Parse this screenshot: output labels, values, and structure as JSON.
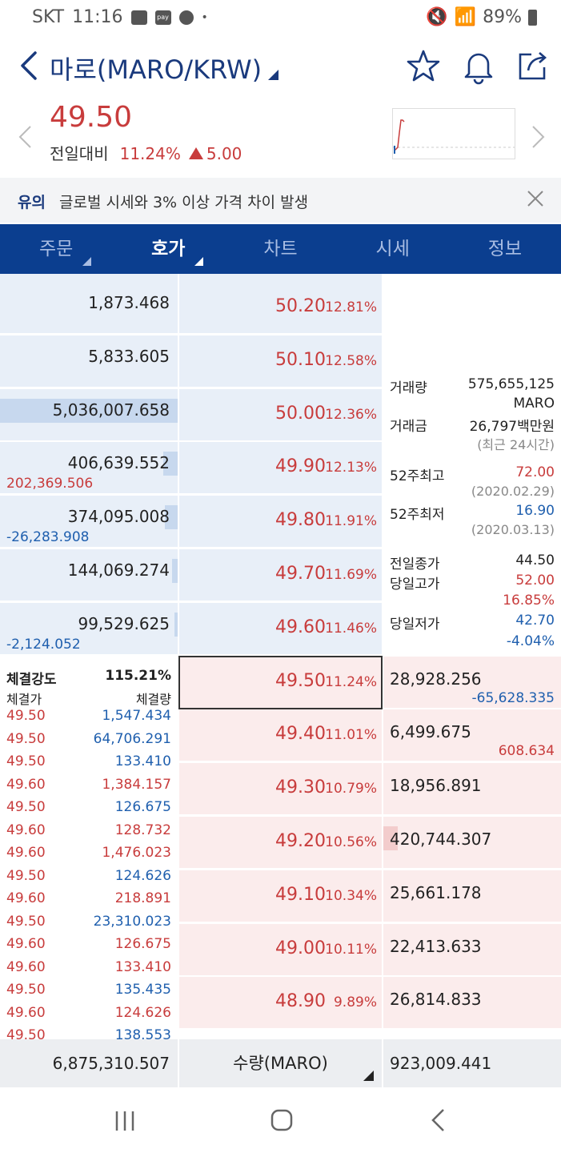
{
  "status": {
    "carrier": "SKT",
    "time": "11:16",
    "battery": "89%",
    "pay_label": "pay"
  },
  "header": {
    "title": "마로(MARO/KRW)"
  },
  "price": {
    "current": "49.50",
    "compare_label": "전일대비",
    "rate": "11.24%",
    "change": "5.00"
  },
  "notice": {
    "tag": "유의",
    "message": "글로벌 시세와 3% 이상 가격 차이 발생"
  },
  "tabs": [
    {
      "label": "주문",
      "caret": true,
      "active": false
    },
    {
      "label": "호가",
      "caret": true,
      "active": true
    },
    {
      "label": "차트",
      "caret": false,
      "active": false
    },
    {
      "label": "시세",
      "caret": false,
      "active": false
    },
    {
      "label": "정보",
      "caret": false,
      "active": false
    }
  ],
  "asks": [
    {
      "qty": "1,873.468",
      "price": "50.20",
      "pct": "12.81%",
      "delta": "",
      "delta_color": "",
      "bar": 0
    },
    {
      "qty": "5,833.605",
      "price": "50.10",
      "pct": "12.58%",
      "delta": "",
      "delta_color": "",
      "bar": 0
    },
    {
      "qty": "5,036,007.658",
      "price": "50.00",
      "pct": "12.36%",
      "delta": "",
      "delta_color": "",
      "bar": 1.0
    },
    {
      "qty": "406,639.552",
      "price": "49.90",
      "pct": "12.13%",
      "delta": "202,369.506",
      "delta_color": "#c83c3c",
      "bar": 0.08
    },
    {
      "qty": "374,095.008",
      "price": "49.80",
      "pct": "11.91%",
      "delta": "-26,283.908",
      "delta_color": "#1f5fae",
      "bar": 0.07
    },
    {
      "qty": "144,069.274",
      "price": "49.70",
      "pct": "11.69%",
      "delta": "",
      "delta_color": "",
      "bar": 0.03
    },
    {
      "qty": "99,529.625",
      "price": "49.60",
      "pct": "11.46%",
      "delta": "-2,124.052",
      "delta_color": "#1f5fae",
      "bar": 0.02
    }
  ],
  "bids": [
    {
      "price": "49.50",
      "pct": "11.24%",
      "qty": "28,928.256",
      "delta": "-65,628.335",
      "delta_color": "#1f5fae",
      "bar": 0
    },
    {
      "price": "49.40",
      "pct": "11.01%",
      "qty": "6,499.675",
      "delta": "608.634",
      "delta_color": "#c83c3c",
      "bar": 0
    },
    {
      "price": "49.30",
      "pct": "10.79%",
      "qty": "18,956.891",
      "delta": "",
      "delta_color": "",
      "bar": 0
    },
    {
      "price": "49.20",
      "pct": "10.56%",
      "qty": "420,744.307",
      "delta": "",
      "delta_color": "",
      "bar": 0.08
    },
    {
      "price": "49.10",
      "pct": "10.34%",
      "qty": "25,661.178",
      "delta": "",
      "delta_color": "",
      "bar": 0
    },
    {
      "price": "49.00",
      "pct": "10.11%",
      "qty": "22,413.633",
      "delta": "",
      "delta_color": "",
      "bar": 0
    },
    {
      "price": "48.90",
      "pct": "9.89%",
      "qty": "26,814.833",
      "delta": "",
      "delta_color": "",
      "bar": 0
    }
  ],
  "info": {
    "volume_label": "거래량",
    "volume": "575,655,125",
    "volume_unit": "MARO",
    "amount_label": "거래금",
    "amount": "26,797백만원",
    "period": "(최근 24시간)",
    "high52_label": "52주최고",
    "high52": "72.00",
    "high52_date": "(2020.02.29)",
    "low52_label": "52주최저",
    "low52": "16.90",
    "low52_date": "(2020.03.13)",
    "prev_close_label": "전일종가",
    "prev_close": "44.50",
    "day_high_label": "당일고가",
    "day_high": "52.00",
    "day_high_pct": "16.85%",
    "day_low_label": "당일저가",
    "day_low": "42.70",
    "day_low_pct": "-4.04%"
  },
  "trades": {
    "strength_label": "체결강도",
    "strength": "115.21%",
    "price_col": "체결가",
    "qty_col": "체결량",
    "rows": [
      {
        "price": "49.50",
        "qty": "1,547.434",
        "color": "#1f5fae"
      },
      {
        "price": "49.50",
        "qty": "64,706.291",
        "color": "#1f5fae"
      },
      {
        "price": "49.50",
        "qty": "133.410",
        "color": "#1f5fae"
      },
      {
        "price": "49.60",
        "qty": "1,384.157",
        "color": "#c83c3c"
      },
      {
        "price": "49.50",
        "qty": "126.675",
        "color": "#1f5fae"
      },
      {
        "price": "49.60",
        "qty": "128.732",
        "color": "#c83c3c"
      },
      {
        "price": "49.60",
        "qty": "1,476.023",
        "color": "#c83c3c"
      },
      {
        "price": "49.50",
        "qty": "124.626",
        "color": "#1f5fae"
      },
      {
        "price": "49.60",
        "qty": "218.891",
        "color": "#c83c3c"
      },
      {
        "price": "49.50",
        "qty": "23,310.023",
        "color": "#1f5fae"
      },
      {
        "price": "49.60",
        "qty": "126.675",
        "color": "#c83c3c"
      },
      {
        "price": "49.60",
        "qty": "133.410",
        "color": "#c83c3c"
      },
      {
        "price": "49.50",
        "qty": "135.435",
        "color": "#1f5fae"
      },
      {
        "price": "49.60",
        "qty": "124.626",
        "color": "#c83c3c"
      },
      {
        "price": "49.50",
        "qty": "138.553",
        "color": "#1f5fae"
      }
    ]
  },
  "footer": {
    "ask_total": "6,875,310.507",
    "unit_label": "수량(MARO)",
    "bid_total": "923,009.441"
  },
  "colors": {
    "up": "#c83c3c",
    "down": "#1f5fae",
    "brand": "#0b3e8f"
  }
}
